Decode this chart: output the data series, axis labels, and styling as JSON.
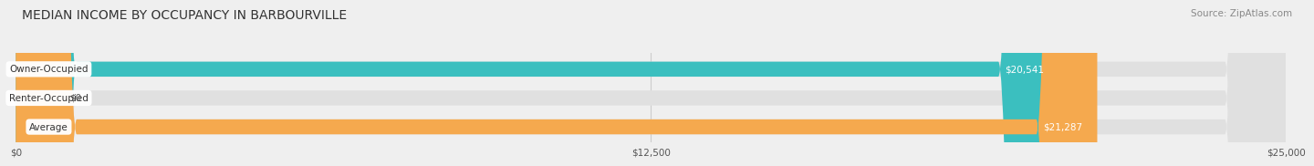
{
  "title": "MEDIAN INCOME BY OCCUPANCY IN BARBOURVILLE",
  "source": "Source: ZipAtlas.com",
  "categories": [
    "Owner-Occupied",
    "Renter-Occupied",
    "Average"
  ],
  "values": [
    20541,
    0,
    21287
  ],
  "bar_colors": [
    "#3bbfbf",
    "#c9a8d4",
    "#f5a94e"
  ],
  "value_labels": [
    "$20,541",
    "$0",
    "$21,287"
  ],
  "xlim": [
    0,
    25000
  ],
  "xticks": [
    0,
    12500,
    25000
  ],
  "xtick_labels": [
    "$0",
    "$12,500",
    "$25,000"
  ],
  "background_color": "#efefef",
  "bar_background_color": "#e0e0e0",
  "title_fontsize": 10,
  "source_fontsize": 7.5,
  "bar_height": 0.52,
  "fig_width": 14.06,
  "fig_height": 1.96
}
